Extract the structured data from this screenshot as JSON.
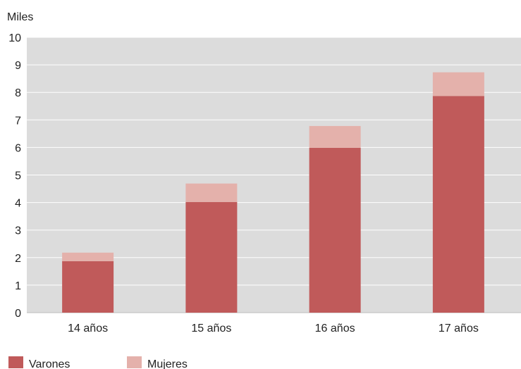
{
  "chart_data": {
    "type": "bar",
    "stacked": true,
    "ylabel": "Miles",
    "ylim": [
      0,
      10
    ],
    "yticks": [
      0,
      1,
      2,
      3,
      4,
      5,
      6,
      7,
      8,
      9,
      10
    ],
    "grid": true,
    "legend_position": "bottom-left",
    "categories": [
      "14 años",
      "15 años",
      "16 años",
      "17 años"
    ],
    "series": [
      {
        "name": "Varones",
        "color": "#c05a5a",
        "values": [
          1.87,
          4.02,
          5.99,
          7.87
        ]
      },
      {
        "name": "Mujeres",
        "color": "#e4b1ab",
        "values": [
          0.31,
          0.67,
          0.79,
          0.86
        ]
      }
    ],
    "colors": {
      "plot_background": "#dcdcdc",
      "gridline": "#ffffff",
      "axis_text": "#222222"
    }
  }
}
